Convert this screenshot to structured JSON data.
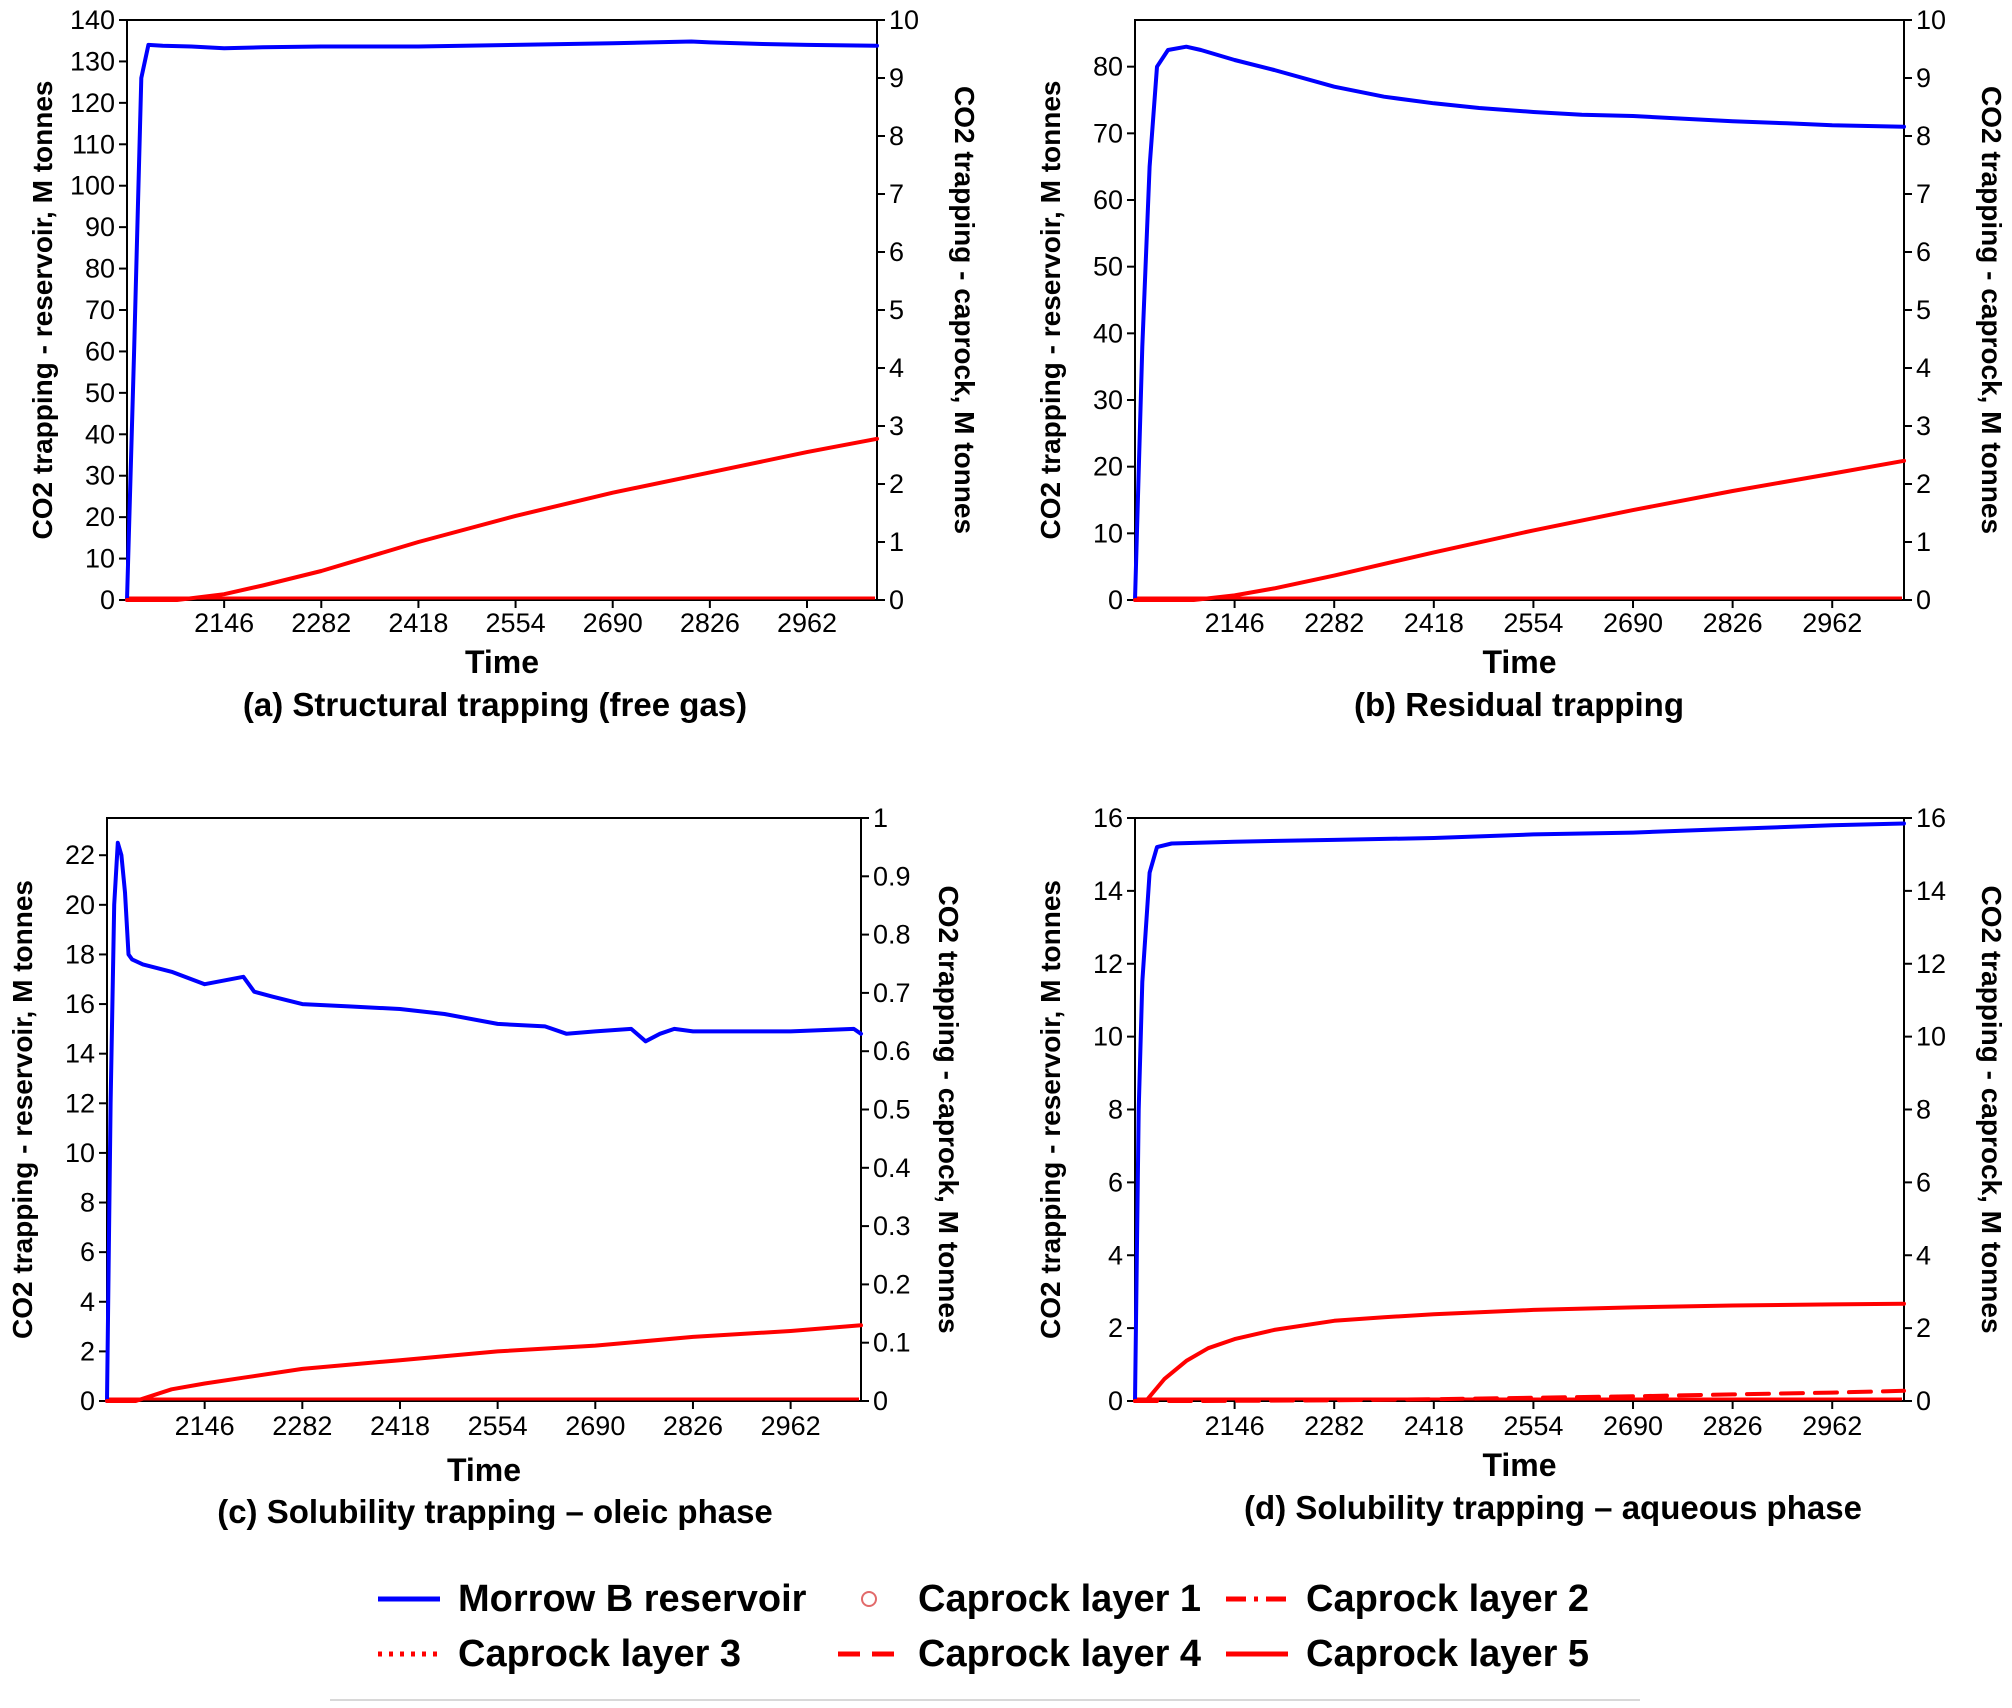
{
  "figure": {
    "legend": [
      {
        "label": "Morrow B reservoir",
        "style": "solid",
        "color": "#0000ff"
      },
      {
        "label": "Caprock layer 1",
        "style": "circle",
        "color": "#e26a6a"
      },
      {
        "label": "Caprock layer 2",
        "style": "dashdot",
        "color": "#ff0000"
      },
      {
        "label": "Caprock layer 3",
        "style": "dotted",
        "color": "#ff0000"
      },
      {
        "label": "Caprock layer 4",
        "style": "dashed",
        "color": "#ff0000"
      },
      {
        "label": "Caprock layer 5",
        "style": "solid",
        "color": "#ff0000"
      }
    ]
  },
  "chart_data": [
    {
      "type": "line",
      "caption": "(a) Structural trapping (free gas)",
      "xlabel": "Time",
      "ylabel_left": "CO2 trapping - reservoir, M tonnes",
      "ylabel_right": "CO2 trapping - caprock, M tonnes",
      "x_ticks": [
        2146,
        2282,
        2418,
        2554,
        2690,
        2826,
        2962
      ],
      "xlim": [
        2010,
        3060
      ],
      "y_left_ticks": [
        0,
        10,
        20,
        30,
        40,
        50,
        60,
        70,
        80,
        90,
        100,
        110,
        120,
        130,
        140
      ],
      "y_left_lim": [
        0,
        140
      ],
      "y_right_ticks": [
        0,
        1,
        2,
        3,
        4,
        5,
        6,
        7,
        8,
        9,
        10
      ],
      "y_right_lim": [
        0,
        10
      ],
      "series": [
        {
          "name": "Morrow B reservoir",
          "axis": "left",
          "color": "#0000ff",
          "x": [
            2010,
            2020,
            2030,
            2040,
            2060,
            2100,
            2146,
            2200,
            2282,
            2418,
            2554,
            2690,
            2800,
            2826,
            2900,
            2962,
            3060
          ],
          "y": [
            0,
            60,
            126,
            134,
            133.8,
            133.6,
            133.2,
            133.4,
            133.6,
            133.6,
            134,
            134.4,
            134.8,
            134.6,
            134.2,
            134,
            133.8
          ]
        },
        {
          "name": "Caprock layer 5",
          "axis": "right",
          "color": "#ff0000",
          "x": [
            2010,
            2080,
            2146,
            2200,
            2282,
            2418,
            2554,
            2690,
            2826,
            2962,
            3060
          ],
          "y": [
            0,
            0,
            0.1,
            0.25,
            0.5,
            1.0,
            1.45,
            1.85,
            2.2,
            2.55,
            2.78
          ]
        }
      ]
    },
    {
      "type": "line",
      "caption": "(b) Residual trapping",
      "xlabel": "Time",
      "ylabel_left": "CO2 trapping - reservoir, M tonnes",
      "ylabel_right": "CO2 trapping - caprock, M tonnes",
      "x_ticks": [
        2146,
        2282,
        2418,
        2554,
        2690,
        2826,
        2962
      ],
      "xlim": [
        2010,
        3060
      ],
      "y_left_ticks": [
        0,
        10,
        20,
        30,
        40,
        50,
        60,
        70,
        80
      ],
      "y_left_lim": [
        0,
        87
      ],
      "y_right_ticks": [
        0,
        1,
        2,
        3,
        4,
        5,
        6,
        7,
        8,
        9,
        10
      ],
      "y_right_lim": [
        0,
        10
      ],
      "series": [
        {
          "name": "Morrow B reservoir",
          "axis": "left",
          "color": "#0000ff",
          "x": [
            2010,
            2020,
            2030,
            2040,
            2055,
            2080,
            2100,
            2146,
            2200,
            2282,
            2350,
            2418,
            2480,
            2554,
            2620,
            2690,
            2760,
            2826,
            2900,
            2962,
            3060
          ],
          "y": [
            0,
            38,
            65,
            80,
            82.5,
            83,
            82.5,
            81,
            79.5,
            77,
            75.5,
            74.5,
            73.8,
            73.2,
            72.8,
            72.6,
            72.2,
            71.8,
            71.5,
            71.2,
            71
          ]
        },
        {
          "name": "Caprock layer 5",
          "axis": "right",
          "color": "#ff0000",
          "x": [
            2010,
            2090,
            2146,
            2200,
            2282,
            2418,
            2554,
            2690,
            2826,
            2962,
            3060
          ],
          "y": [
            0,
            0,
            0.08,
            0.2,
            0.42,
            0.82,
            1.2,
            1.55,
            1.88,
            2.18,
            2.4
          ]
        }
      ]
    },
    {
      "type": "line",
      "caption": "(c) Solubility trapping – oleic phase",
      "xlabel": "Time",
      "ylabel_left": "CO2 trapping - reservoir, M tonnes",
      "ylabel_right": "CO2 trapping - caprock, M tonnes",
      "x_ticks": [
        2146,
        2282,
        2418,
        2554,
        2690,
        2826,
        2962
      ],
      "xlim": [
        2010,
        3060
      ],
      "y_left_ticks": [
        0,
        2,
        4,
        6,
        8,
        10,
        12,
        14,
        16,
        18,
        20,
        22
      ],
      "y_left_lim": [
        0,
        23.5
      ],
      "y_right_ticks": [
        0,
        0.1,
        0.2,
        0.3,
        0.4,
        0.5,
        0.6,
        0.7,
        0.8,
        0.9,
        1
      ],
      "y_right_lim": [
        0,
        1
      ],
      "series": [
        {
          "name": "Morrow B reservoir",
          "axis": "left",
          "color": "#0000ff",
          "x": [
            2010,
            2015,
            2020,
            2025,
            2030,
            2035,
            2040,
            2045,
            2060,
            2100,
            2146,
            2200,
            2215,
            2240,
            2282,
            2350,
            2418,
            2480,
            2554,
            2620,
            2650,
            2690,
            2740,
            2760,
            2780,
            2800,
            2826,
            2900,
            2962,
            3050,
            3060
          ],
          "y": [
            0,
            12,
            20,
            22.5,
            22,
            20.5,
            18,
            17.8,
            17.6,
            17.3,
            16.8,
            17.1,
            16.5,
            16.3,
            16,
            15.9,
            15.8,
            15.6,
            15.2,
            15.1,
            14.8,
            14.9,
            15,
            14.5,
            14.8,
            15,
            14.9,
            14.9,
            14.9,
            15,
            14.8
          ]
        },
        {
          "name": "Caprock layer 5",
          "axis": "right",
          "color": "#ff0000",
          "x": [
            2010,
            2050,
            2100,
            2146,
            2200,
            2282,
            2418,
            2554,
            2690,
            2826,
            2962,
            3060
          ],
          "y": [
            0,
            0,
            0.02,
            0.03,
            0.04,
            0.055,
            0.07,
            0.085,
            0.095,
            0.11,
            0.12,
            0.13
          ]
        }
      ]
    },
    {
      "type": "line",
      "caption": "(d) Solubility trapping – aqueous phase",
      "xlabel": "Time",
      "ylabel_left": "CO2 trapping - reservoir, M tonnes",
      "ylabel_right": "CO2 trapping - caprock, M tonnes",
      "x_ticks": [
        2146,
        2282,
        2418,
        2554,
        2690,
        2826,
        2962
      ],
      "xlim": [
        2010,
        3060
      ],
      "y_left_ticks": [
        0,
        2,
        4,
        6,
        8,
        10,
        12,
        14,
        16
      ],
      "y_left_lim": [
        0,
        16
      ],
      "y_right_ticks": [
        0,
        2,
        4,
        6,
        8,
        10,
        12,
        14,
        16
      ],
      "y_right_lim": [
        0,
        16
      ],
      "series": [
        {
          "name": "Morrow B reservoir",
          "axis": "left",
          "color": "#0000ff",
          "x": [
            2010,
            2015,
            2020,
            2030,
            2040,
            2060,
            2146,
            2282,
            2418,
            2554,
            2690,
            2826,
            2962,
            3060
          ],
          "y": [
            0,
            8,
            11.5,
            14.5,
            15.2,
            15.3,
            15.35,
            15.4,
            15.45,
            15.55,
            15.6,
            15.7,
            15.8,
            15.85
          ]
        },
        {
          "name": "Caprock layer 5",
          "axis": "right",
          "color": "#ff0000",
          "x": [
            2010,
            2025,
            2050,
            2080,
            2110,
            2146,
            2200,
            2282,
            2350,
            2418,
            2554,
            2690,
            2826,
            2962,
            3060
          ],
          "y": [
            0,
            0,
            0.6,
            1.1,
            1.45,
            1.7,
            1.95,
            2.2,
            2.3,
            2.38,
            2.5,
            2.57,
            2.62,
            2.65,
            2.67
          ]
        },
        {
          "name": "Caprock layer 4",
          "axis": "right",
          "color": "#ff0000",
          "style": "dashed",
          "x": [
            2010,
            2100,
            2282,
            2418,
            2554,
            2690,
            2826,
            2962,
            3060
          ],
          "y": [
            0,
            0,
            0.02,
            0.05,
            0.09,
            0.13,
            0.18,
            0.23,
            0.28
          ]
        }
      ]
    }
  ]
}
